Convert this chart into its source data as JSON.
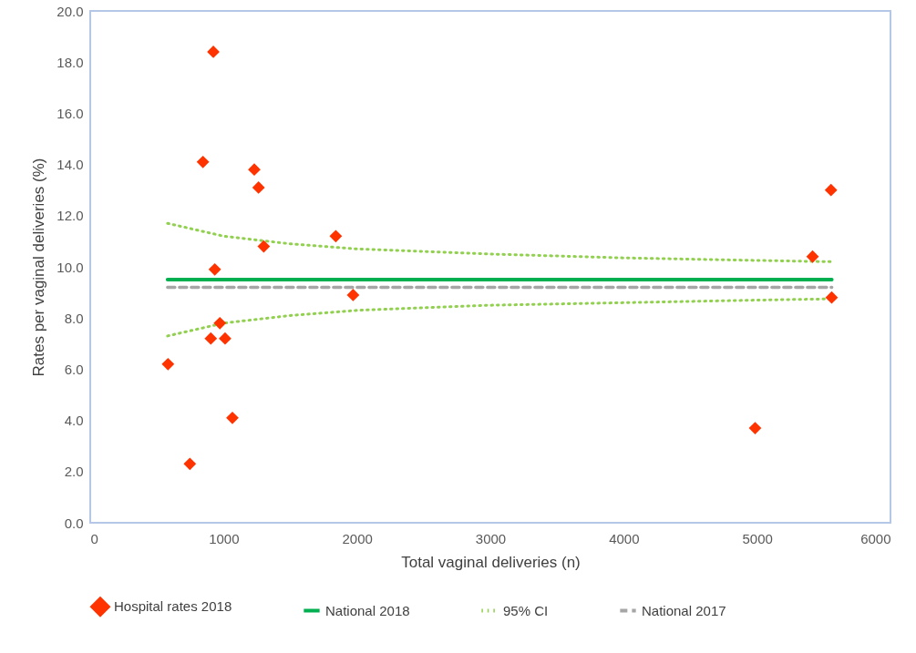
{
  "chart_data": {
    "type": "scatter",
    "xlabel": "Total vaginal deliveries (n)",
    "ylabel": "Rates per vaginal deliveries (%)",
    "xlim": [
      0,
      6000
    ],
    "xticks": [
      0,
      1000,
      2000,
      3000,
      4000,
      5000,
      6000
    ],
    "ylim": [
      0,
      20
    ],
    "yticks": [
      {
        "value": 0,
        "label": "0.0"
      },
      {
        "value": 2,
        "label": "2.0"
      },
      {
        "value": 4,
        "label": "4.0"
      },
      {
        "value": 6,
        "label": "6.0"
      },
      {
        "value": 8,
        "label": "8.0"
      },
      {
        "value": 10,
        "label": "10.0"
      },
      {
        "value": 12,
        "label": "12.0"
      },
      {
        "value": 14,
        "label": "14.0"
      },
      {
        "value": 16,
        "label": "16.0"
      },
      {
        "value": 18,
        "label": "18.0"
      },
      {
        "value": 20,
        "label": "20.0"
      }
    ],
    "grid": false,
    "legend": "bottom",
    "series": [
      {
        "name": "Hospital rates 2018",
        "marker": "diamond",
        "color": "#ff3300",
        "x": [
          923,
          845,
          1230,
          1262,
          1841,
          1301,
          934,
          1971,
          972,
          904,
          1011,
          583,
          1066,
          747,
          5554,
          5416,
          5559,
          4985
        ],
        "values": [
          18.4,
          14.1,
          13.8,
          13.1,
          11.2,
          10.8,
          9.9,
          8.9,
          7.8,
          7.2,
          7.2,
          6.2,
          4.1,
          2.3,
          13.0,
          10.4,
          8.8,
          3.7
        ]
      },
      {
        "name": "National 2018",
        "type": "line",
        "line_style": "solid",
        "marker": "none",
        "color": "#00b050",
        "x": [
          580,
          5560
        ],
        "values": [
          9.5,
          9.5
        ]
      },
      {
        "name": "95% CI",
        "type": "line",
        "line_style": "dotted",
        "marker": "none",
        "color": "#92d050",
        "x": [
          580,
          1000,
          1500,
          2000,
          3000,
          4000,
          5000,
          5560
        ],
        "values": [
          11.7,
          11.2,
          10.9,
          10.7,
          10.5,
          10.35,
          10.25,
          10.2
        ]
      },
      {
        "type": "line",
        "line_style": "dotted",
        "marker": "none",
        "color": "#92d050",
        "x": [
          580,
          1000,
          1500,
          2000,
          3000,
          4000,
          5000,
          5560
        ],
        "values": [
          7.3,
          7.8,
          8.1,
          8.3,
          8.5,
          8.6,
          8.7,
          8.75
        ]
      },
      {
        "name": "National 2017",
        "type": "line",
        "line_style": "dashed",
        "marker": "none",
        "color": "#a6a6a6",
        "x": [
          580,
          5560
        ],
        "values": [
          9.2,
          9.2
        ]
      }
    ]
  }
}
